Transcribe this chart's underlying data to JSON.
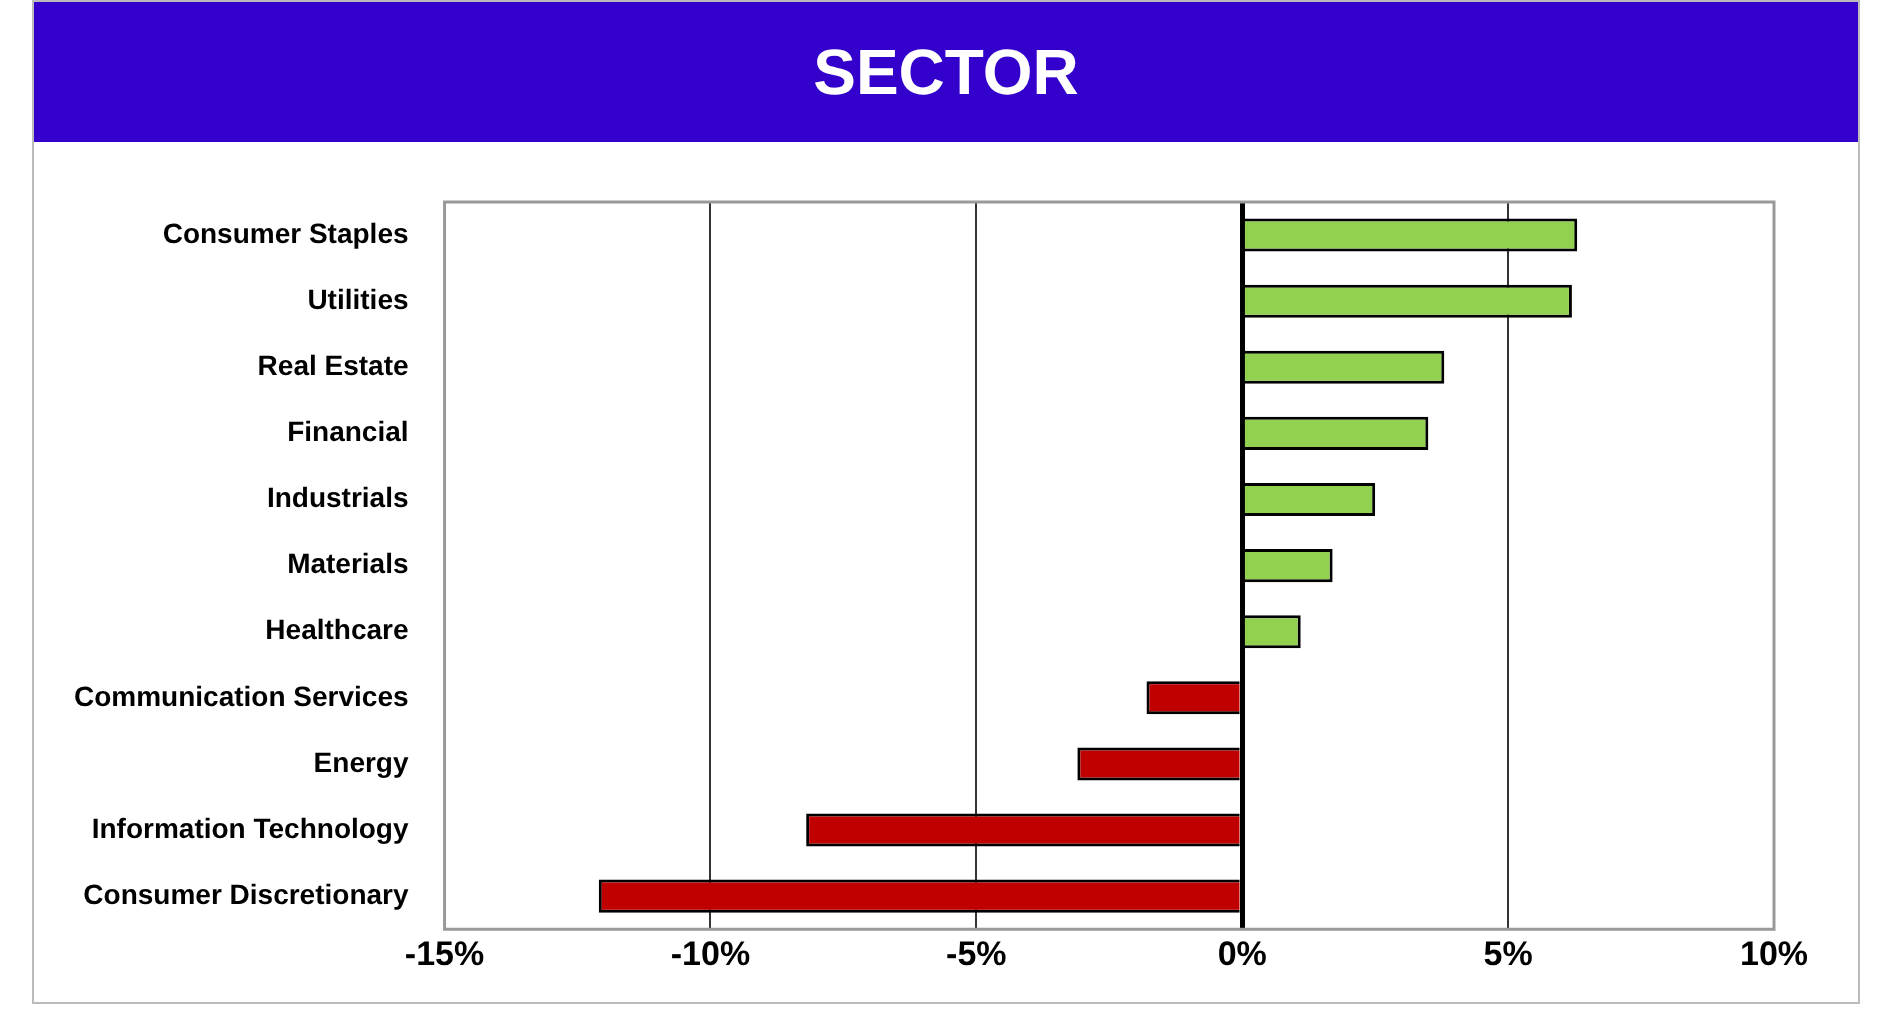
{
  "chart_data": {
    "type": "bar",
    "orientation": "horizontal",
    "title": "SECTOR",
    "categories": [
      "Consumer Staples",
      "Utilities",
      "Real Estate",
      "Financial",
      "Industrials",
      "Materials",
      "Healthcare",
      "Communication Services",
      "Energy",
      "Information Technology",
      "Consumer Discretionary"
    ],
    "values": [
      6.3,
      6.2,
      3.8,
      3.5,
      2.5,
      1.7,
      1.1,
      -1.8,
      -3.1,
      -8.2,
      -12.1
    ],
    "colors": [
      "#92d050",
      "#92d050",
      "#92d050",
      "#92d050",
      "#92d050",
      "#92d050",
      "#92d050",
      "#c00000",
      "#c00000",
      "#c00000",
      "#c00000"
    ],
    "xlim": [
      -15,
      10
    ],
    "xticks": [
      {
        "value": -15,
        "label": "-15%"
      },
      {
        "value": -10,
        "label": "-10%"
      },
      {
        "value": -5,
        "label": "-5%"
      },
      {
        "value": 0,
        "label": "0%"
      },
      {
        "value": 5,
        "label": "5%"
      },
      {
        "value": 10,
        "label": "10%"
      }
    ],
    "grid": "x",
    "legend": false
  }
}
